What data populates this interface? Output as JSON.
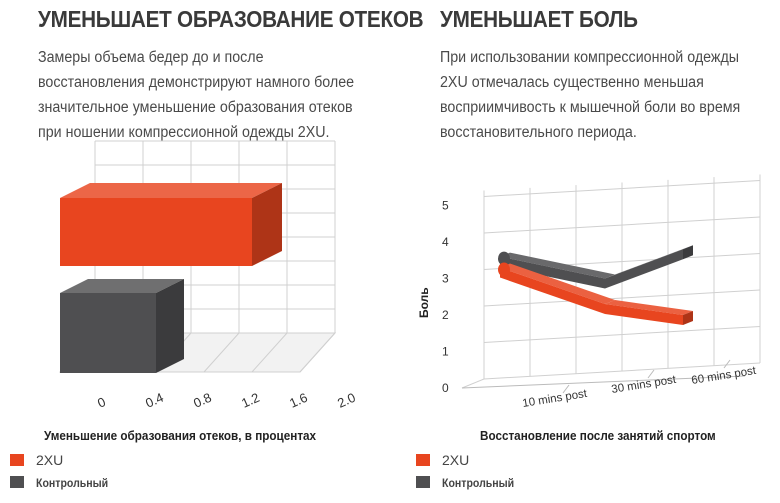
{
  "colors": {
    "accent": "#e8451f",
    "control": "#4f4f51",
    "grid": "#d0d0d0"
  },
  "left_panel": {
    "heading": "УМЕНЬШАЕТ ОБРАЗОВАНИЕ ОТЕКОВ",
    "description": "Замеры объема бедер до и после восстановления демонстрируют намного более значительное уменьшение образования отеков при ношении компрессионной одежды 2XU.",
    "caption": "Уменьшение образования отеков, в процентах",
    "legend": [
      {
        "label": "2XU",
        "color": "#e8451f"
      },
      {
        "label": "Контрольный",
        "color": "#4f4f51"
      }
    ]
  },
  "right_panel": {
    "heading": "УМЕНЬШАЕТ БОЛЬ",
    "description": "При использовании компрессионной одежды 2XU отмечалась существенно меньшая восприимчивость к мышечной боли во время восстановительного периода.",
    "caption": "Восстановление после занятий спортом",
    "legend": [
      {
        "label": "2XU",
        "color": "#e8451f"
      },
      {
        "label": "Контрольный",
        "color": "#4f4f51"
      }
    ]
  },
  "chart_data": [
    {
      "type": "bar",
      "orientation": "horizontal",
      "three_d": true,
      "xlabel": "Уменьшение образования отеков, в процентах",
      "ticks": [
        "0",
        "0.4",
        "0.8",
        "1.2",
        "1.6",
        "2.0"
      ],
      "xlim": [
        0,
        2.0
      ],
      "series": [
        {
          "name": "2XU",
          "values": [
            1.6
          ]
        },
        {
          "name": "Контрольный",
          "values": [
            0.8
          ]
        }
      ],
      "grid": true,
      "legend_position": "bottom-left"
    },
    {
      "type": "line",
      "three_d": true,
      "xlabel": "Восстановление после занятий спортом",
      "ylabel": "Боль",
      "categories": [
        "10 mins post",
        "30 mins post",
        "60 mins post"
      ],
      "yticks": [
        "0",
        "1",
        "2",
        "3",
        "4",
        "5"
      ],
      "ylim": [
        0,
        5
      ],
      "series": [
        {
          "name": "2XU",
          "values": [
            3.3,
            2.3,
            2.0
          ]
        },
        {
          "name": "Контрольный",
          "values": [
            3.6,
            3.0,
            3.8
          ]
        }
      ],
      "grid": true,
      "legend_position": "bottom-left"
    }
  ]
}
